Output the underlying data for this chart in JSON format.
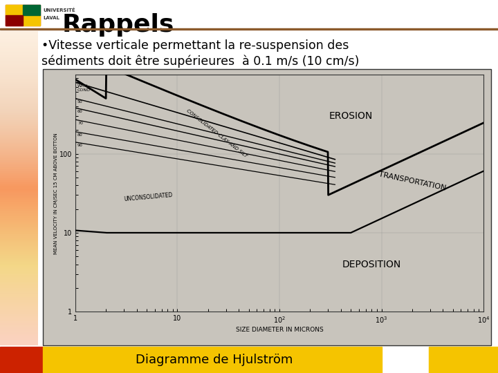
{
  "title": "Rappels",
  "bullet_line1": "•Vitesse verticale permettant la re-suspension des",
  "bullet_line2": "sédiments doit être supérieures  à 0.1 m/s (10 cm/s)",
  "caption": "Diagramme de Hjulström",
  "bg_color": "#ffffff",
  "header_line_color": "#8B5A2B",
  "footer_left_color": "#cc2200",
  "footer_right_color": "#f5c400",
  "footer_mid_color": "#f5c400",
  "title_color": "#000000",
  "text_color": "#000000",
  "circle_color": "#cc0000",
  "diagram_bg": "#d8d4cc",
  "left_gradient_colors": [
    "#f5b8a0",
    "#f0d080",
    "#f5b8a0"
  ],
  "footer_text_color": "#000000"
}
